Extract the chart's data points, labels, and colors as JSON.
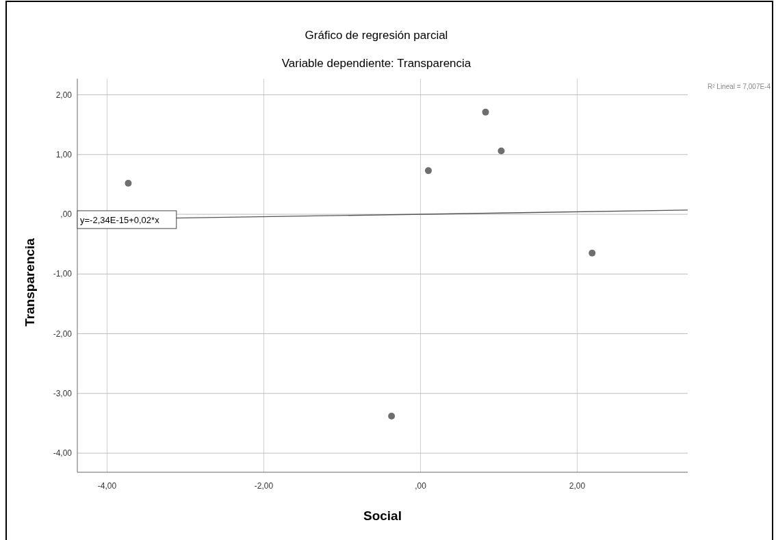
{
  "chart_data": {
    "type": "scatter",
    "title": "Gráfico de regresión parcial",
    "subtitle": "Variable dependiente: Transparencia",
    "xlabel": "Social",
    "ylabel": "Transparencia",
    "series": [
      {
        "color": "#6e6e6e",
        "x": [
          -3.73,
          0.1,
          0.83,
          1.03,
          2.19,
          -0.37
        ],
        "values": [
          0.52,
          0.73,
          1.71,
          1.06,
          -0.65,
          -3.38
        ]
      },
      {
        "type": "line",
        "color": "#555555",
        "x": [
          -4.38,
          3.41
        ],
        "values": [
          -0.09,
          0.07
        ],
        "marker": "none"
      }
    ],
    "xlim": [
      -4.38,
      3.41
    ],
    "ylim": [
      -4.32,
      2.27
    ],
    "xticks": [
      {
        "value": -4,
        "label": "-4,00"
      },
      {
        "value": -2,
        "label": "-2,00"
      },
      {
        "value": 0,
        "label": ",00"
      },
      {
        "value": 2,
        "label": "2,00"
      }
    ],
    "yticks": [
      {
        "value": -4,
        "label": "-4,00"
      },
      {
        "value": -3,
        "label": "-3,00"
      },
      {
        "value": -2,
        "label": "-2,00"
      },
      {
        "value": -1,
        "label": "-1,00"
      },
      {
        "value": 0,
        "label": ",00"
      },
      {
        "value": 1,
        "label": "1,00"
      },
      {
        "value": 2,
        "label": "2,00"
      }
    ],
    "grid": true,
    "marker": "circle",
    "annotations": [
      {
        "text": "y=-2,34E-15+0,02*x",
        "x": -4.38,
        "y": -0.09
      },
      "R² Lineal = 7,007E-4"
    ]
  }
}
